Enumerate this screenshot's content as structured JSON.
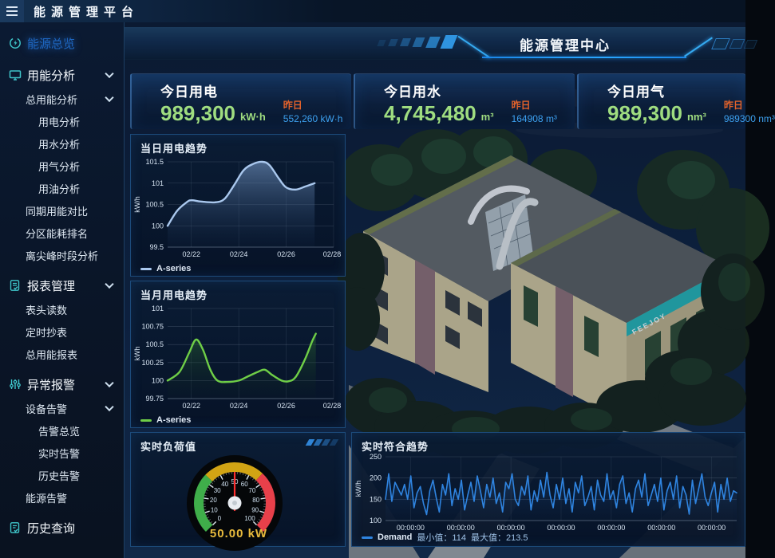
{
  "topbar": {
    "title": "能源管理平台"
  },
  "sidebar": {
    "items": [
      {
        "label": "能源总览",
        "level": 0,
        "icon": "energy-overview-icon",
        "active": true
      },
      {
        "label": "用能分析",
        "level": 0,
        "icon": "monitor-icon",
        "chevron": true
      },
      {
        "label": "总用能分析",
        "level": 1,
        "chevron": true
      },
      {
        "label": "用电分析",
        "level": 2
      },
      {
        "label": "用水分析",
        "level": 2
      },
      {
        "label": "用气分析",
        "level": 2
      },
      {
        "label": "用油分析",
        "level": 2
      },
      {
        "label": "同期用能对比",
        "level": 1
      },
      {
        "label": "分区能耗排名",
        "level": 1
      },
      {
        "label": "离尖峰时段分析",
        "level": 1
      },
      {
        "label": "报表管理",
        "level": 0,
        "icon": "report-icon",
        "chevron": true
      },
      {
        "label": "表头读数",
        "level": 1
      },
      {
        "label": "定时抄表",
        "level": 1
      },
      {
        "label": "总用能报表",
        "level": 1
      },
      {
        "label": "异常报警",
        "level": 0,
        "icon": "alarm-sliders-icon",
        "chevron": true
      },
      {
        "label": "设备告警",
        "level": 1,
        "chevron": true
      },
      {
        "label": "告警总览",
        "level": 2
      },
      {
        "label": "实时告警",
        "level": 2
      },
      {
        "label": "历史告警",
        "level": 2
      },
      {
        "label": "能源告警",
        "level": 1
      },
      {
        "label": "历史查询",
        "level": 0,
        "icon": "history-icon"
      }
    ]
  },
  "header": {
    "title": "能源管理中心"
  },
  "stats": [
    {
      "label": "今日用电",
      "value": "989,300",
      "unit": "kW·h",
      "prev_label": "昨日",
      "prev_value": "552,260 kW·h"
    },
    {
      "label": "今日用水",
      "value": "4,745,480",
      "unit": "m³",
      "prev_label": "昨日",
      "prev_value": "164908 m³"
    },
    {
      "label": "今日用气",
      "value": "989,300",
      "unit": "nm³",
      "prev_label": "昨日",
      "prev_value": "989300 nm³"
    }
  ],
  "building": {
    "brand": "FEEJOY"
  },
  "colors": {
    "accent_blue": "#2f9df5",
    "value_green": "#9fdd80",
    "prev_orange": "#e2622b",
    "prev_blue": "#3da1f0",
    "teal": "#3fc6ca",
    "panel_border": "#1c4a7a"
  },
  "chart_data": [
    {
      "type": "area",
      "title": "当日用电趋势",
      "legend": "A-series",
      "ylabel": "kW/h",
      "ylim": [
        99.5,
        101.5
      ],
      "yticks": [
        99.5,
        100,
        100.5,
        101,
        101.5
      ],
      "xlim": [
        21,
        28
      ],
      "xticks": [
        {
          "v": 22,
          "label": "02/22"
        },
        {
          "v": 24,
          "label": "02/24"
        },
        {
          "v": 26,
          "label": "02/26"
        },
        {
          "v": 28,
          "label": "02/28"
        }
      ],
      "color": "#aac8ee",
      "smooth": true,
      "fill": [
        "rgba(132,168,216,0.55)",
        "rgba(30,60,100,0.06)"
      ],
      "x": [
        21,
        21.4,
        21.8,
        22,
        22.4,
        23,
        23.4,
        23.8,
        24.2,
        24.6,
        25,
        25.3,
        25.7,
        26,
        26.4,
        26.8,
        27.2
      ],
      "y": [
        100,
        100.35,
        100.55,
        100.6,
        100.57,
        100.55,
        100.63,
        100.95,
        101.3,
        101.45,
        101.5,
        101.42,
        101.1,
        100.9,
        100.85,
        100.92,
        101
      ]
    },
    {
      "type": "area",
      "title": "当月用电趋势",
      "legend": "A-series",
      "ylabel": "kWh",
      "ylim": [
        99.75,
        101
      ],
      "yticks": [
        99.75,
        100,
        100.25,
        100.5,
        100.75,
        101
      ],
      "xlim": [
        21,
        28
      ],
      "xticks": [
        {
          "v": 22,
          "label": "02/22"
        },
        {
          "v": 24,
          "label": "02/24"
        },
        {
          "v": 26,
          "label": "02/26"
        },
        {
          "v": 28,
          "label": "02/28"
        }
      ],
      "color": "#6fce47",
      "smooth": true,
      "fill": [
        "rgba(46,110,52,0.5)",
        "rgba(15,40,25,0.05)"
      ],
      "x": [
        21,
        21.5,
        21.9,
        22.2,
        22.5,
        22.8,
        23.1,
        23.5,
        24,
        24.4,
        24.8,
        25.1,
        25.4,
        25.8,
        26.1,
        26.4,
        26.8,
        27.1,
        27.25
      ],
      "y": [
        100,
        100.12,
        100.38,
        100.57,
        100.42,
        100.15,
        100,
        99.98,
        100,
        100.06,
        100.12,
        100.15,
        100.08,
        100,
        99.99,
        100.05,
        100.3,
        100.55,
        100.65
      ]
    },
    {
      "type": "gauge",
      "title": "实时负荷值",
      "min": 0,
      "max": 100,
      "value": 50,
      "display": "50.00 kW",
      "unit": "kW",
      "tick_step": 10,
      "zones": [
        {
          "from": 0,
          "to": 33,
          "color": "#3fae4a"
        },
        {
          "from": 33,
          "to": 66,
          "color": "#d2a414"
        },
        {
          "from": 66,
          "to": 100,
          "color": "#e8404a"
        }
      ]
    },
    {
      "type": "line",
      "title": "实时符合趋势",
      "legend": "Demand",
      "min_label": "最小值：114",
      "max_label": "最大值：213.5",
      "ylabel": "kW/h",
      "ylim": [
        100,
        250
      ],
      "yticks": [
        100,
        150,
        200,
        250
      ],
      "xlabels": [
        "00:00:00",
        "00:00:00",
        "00:00:00",
        "00:00:00",
        "00:00:00",
        "00:00:00",
        "00:00:00"
      ],
      "color": "#2f84e0",
      "fill": [
        "rgba(40,110,190,0.28)",
        "rgba(20,50,100,0.05)"
      ],
      "values": [
        150,
        210,
        145,
        190,
        175,
        160,
        185,
        150,
        205,
        130,
        165,
        180,
        140,
        114,
        170,
        195,
        155,
        120,
        185,
        160,
        210,
        135,
        175,
        150,
        195,
        125,
        160,
        190,
        145,
        205,
        170,
        130,
        185,
        155,
        200,
        140,
        165,
        120,
        190,
        175,
        210,
        150,
        135,
        180,
        160,
        205,
        125,
        170,
        145,
        195,
        155,
        213.5,
        160,
        130,
        185,
        150,
        200,
        140,
        175,
        120,
        190,
        165,
        205,
        135,
        155,
        180,
        125,
        195,
        160,
        145,
        210,
        150,
        170,
        130,
        185,
        205,
        140,
        165,
        120,
        175,
        195,
        155,
        210,
        135,
        160,
        185,
        145,
        200,
        125,
        170,
        190,
        150,
        205,
        130,
        180,
        160,
        115,
        195,
        140,
        175,
        210,
        155,
        135,
        165,
        190,
        120,
        185,
        150,
        200,
        145,
        170,
        165
      ]
    }
  ]
}
